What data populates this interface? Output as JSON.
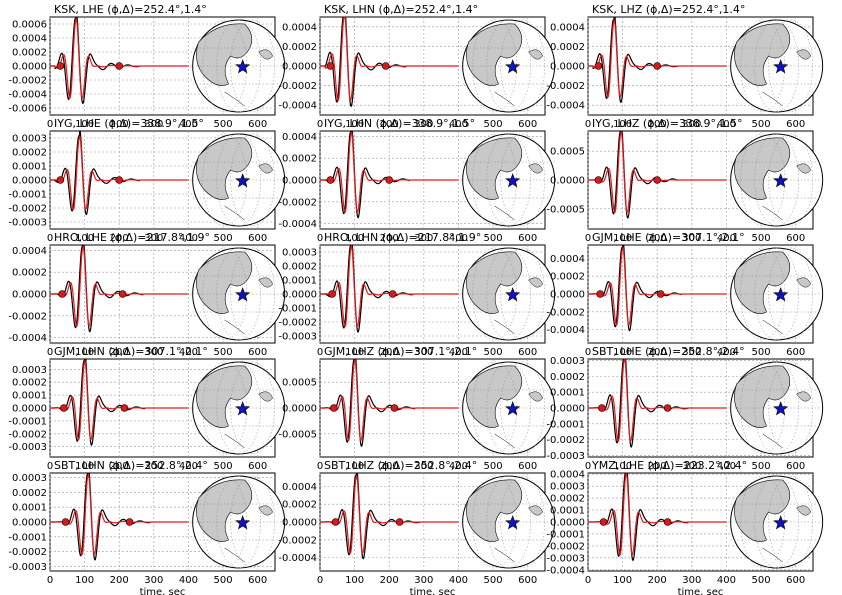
{
  "figure": {
    "x_ticks": [
      0,
      100,
      200,
      300,
      400,
      500,
      600
    ],
    "xlim": [
      0,
      650
    ],
    "xlabel": "time, sec",
    "colors": {
      "data": "#000000",
      "synthetic": "#e41a1c",
      "marker": "#d7191c",
      "land": "#c8c8c8",
      "star": "#1010c8"
    }
  },
  "chart_data": [
    {
      "type": "line",
      "title": "KSK, LHE",
      "phi": "252.4",
      "delta": "1.4",
      "ylim": [
        -0.0007,
        0.0007
      ],
      "y_ticks": [
        "0.0006",
        "0.0004",
        "0.0002",
        "0.0000",
        "-0.0002",
        "-0.0004",
        "-0.0006"
      ],
      "y_tick_values": [
        0.0006,
        0.0004,
        0.0002,
        0,
        -0.0002,
        -0.0004,
        -0.0006
      ],
      "peak_time": 75,
      "amp": 0.00065,
      "markers": [
        30,
        200
      ],
      "xlabel": ""
    },
    {
      "type": "line",
      "title": "KSK, LHN",
      "phi": "252.4",
      "delta": "1.4",
      "ylim": [
        -0.0005,
        0.0005
      ],
      "y_ticks": [
        "0.0004",
        "0.0002",
        "0.0000",
        "-0.0002",
        "-0.0004"
      ],
      "y_tick_values": [
        0.0004,
        0.0002,
        0,
        -0.0002,
        -0.0004
      ],
      "peak_time": 70,
      "amp": 0.0005,
      "markers": [
        30,
        190
      ],
      "xlabel": ""
    },
    {
      "type": "line",
      "title": "KSK, LHZ",
      "phi": "252.4",
      "delta": "1.4",
      "ylim": [
        -0.0005,
        0.0005
      ],
      "y_ticks": [
        "0.0004",
        "0.0002",
        "0.0000",
        "-0.0002",
        "-0.0004"
      ],
      "y_tick_values": [
        0.0004,
        0.0002,
        0,
        -0.0002,
        -0.0004
      ],
      "peak_time": 75,
      "amp": 0.00045,
      "markers": [
        30,
        200
      ],
      "xlabel": ""
    },
    {
      "type": "line",
      "title": "IYG, LHE",
      "phi": "338.9",
      "delta": "1.5",
      "ylim": [
        -0.00035,
        0.00035
      ],
      "y_ticks": [
        "0.0003",
        "0.0002",
        "0.0001",
        "0.0000",
        "-0.0001",
        "-0.0002",
        "-0.0003"
      ],
      "y_tick_values": [
        0.0003,
        0.0002,
        0.0001,
        0,
        -0.0001,
        -0.0002,
        -0.0003
      ],
      "peak_time": 85,
      "amp": 0.0003,
      "markers": [
        30,
        200
      ],
      "xlabel": ""
    },
    {
      "type": "line",
      "title": "IYG, LHN",
      "phi": "338.9",
      "delta": "1.5",
      "ylim": [
        -0.00045,
        0.00045
      ],
      "y_ticks": [
        "0.0004",
        "0.0002",
        "0.0000",
        "-0.0002",
        "-0.0004"
      ],
      "y_tick_values": [
        0.0004,
        0.0002,
        0,
        -0.0002,
        -0.0004
      ],
      "peak_time": 90,
      "amp": 0.00042,
      "markers": [
        30,
        200
      ],
      "xlabel": ""
    },
    {
      "type": "line",
      "title": "IYG, LHZ",
      "phi": "338.9",
      "delta": "1.5",
      "ylim": [
        -0.00085,
        0.00085
      ],
      "y_ticks": [
        "0.0005",
        "0.0000",
        "-0.0005"
      ],
      "y_tick_values": [
        0.0005,
        0,
        -0.0005
      ],
      "peak_time": 95,
      "amp": 0.0008,
      "markers": [
        30,
        200
      ],
      "xlabel": ""
    },
    {
      "type": "line",
      "title": "HRO, LHE",
      "phi": "217.8",
      "delta": "1.9",
      "ylim": [
        -0.00045,
        0.00045
      ],
      "y_ticks": [
        "0.0004",
        "0.0002",
        "0.0000",
        "-0.0002",
        "-0.0004"
      ],
      "y_tick_values": [
        0.0004,
        0.0002,
        0,
        -0.0002,
        -0.0004
      ],
      "peak_time": 95,
      "amp": 0.00042,
      "markers": [
        35,
        210
      ],
      "xlabel": ""
    },
    {
      "type": "line",
      "title": "HRO, LHN",
      "phi": "217.8",
      "delta": "1.9",
      "ylim": [
        -0.00035,
        0.00035
      ],
      "y_ticks": [
        "0.0003",
        "0.0002",
        "0.0001",
        "0.0000",
        "-0.0001",
        "-0.0002",
        "-0.0003"
      ],
      "y_tick_values": [
        0.0003,
        0.0002,
        0.0001,
        0,
        -0.0001,
        -0.0002,
        -0.0003
      ],
      "peak_time": 90,
      "amp": 0.00033,
      "markers": [
        35,
        210
      ],
      "xlabel": ""
    },
    {
      "type": "line",
      "title": "GJM, LHE",
      "phi": "307.1",
      "delta": "2.1",
      "ylim": [
        -0.00055,
        0.00055
      ],
      "y_ticks": [
        "0.0004",
        "0.0002",
        "0.0000",
        "-0.0002",
        "-0.0004"
      ],
      "y_tick_values": [
        0.0004,
        0.0002,
        0,
        -0.0002,
        -0.0004
      ],
      "peak_time": 100,
      "amp": 0.0005,
      "markers": [
        35,
        210
      ],
      "xlabel": ""
    },
    {
      "type": "line",
      "title": "GJM, LHN",
      "phi": "307.1",
      "delta": "2.1",
      "ylim": [
        -0.00038,
        0.00038
      ],
      "y_ticks": [
        "0.0003",
        "0.0002",
        "0.0001",
        "0.0000",
        "-0.0001",
        "-0.0002",
        "-0.0003"
      ],
      "y_tick_values": [
        0.0003,
        0.0002,
        0.0001,
        0,
        -0.0001,
        -0.0002,
        -0.0003
      ],
      "peak_time": 100,
      "amp": 0.00035,
      "markers": [
        40,
        215
      ],
      "xlabel": ""
    },
    {
      "type": "line",
      "title": "GJM, LHZ",
      "phi": "307.1",
      "delta": "2.1",
      "ylim": [
        -0.00095,
        0.00095
      ],
      "y_ticks": [
        "0.0005",
        "0.0000",
        "-0.0005"
      ],
      "y_tick_values": [
        0.0005,
        0,
        -0.0005
      ],
      "peak_time": 100,
      "amp": 0.0009,
      "markers": [
        40,
        215
      ],
      "xlabel": ""
    },
    {
      "type": "line",
      "title": "SBT, LHE",
      "phi": "252.8",
      "delta": "2.4",
      "ylim": [
        -0.00031,
        0.00031
      ],
      "y_ticks": [
        "0.0003",
        "0.0002",
        "0.0001",
        "0.0000",
        "-0.0001",
        "-0.0002",
        "-0.0003"
      ],
      "y_tick_values": [
        0.0003,
        0.0002,
        0.0001,
        0,
        -0.0001,
        -0.0002,
        -0.0003
      ],
      "peak_time": 105,
      "amp": 0.0003,
      "markers": [
        40,
        230
      ],
      "xlabel": ""
    },
    {
      "type": "line",
      "title": "SBT, LHN",
      "phi": "252.8",
      "delta": "2.4",
      "ylim": [
        -0.00033,
        0.00033
      ],
      "y_ticks": [
        "0.0003",
        "0.0002",
        "0.0001",
        "0.0000",
        "-0.0001",
        "-0.0002",
        "-0.0003"
      ],
      "y_tick_values": [
        0.0003,
        0.0002,
        0.0001,
        0,
        -0.0001,
        -0.0002,
        -0.0003
      ],
      "peak_time": 110,
      "amp": 0.00031,
      "markers": [
        45,
        230
      ],
      "xlabel": "time, sec"
    },
    {
      "type": "line",
      "title": "SBT, LHZ",
      "phi": "252.8",
      "delta": "2.4",
      "ylim": [
        -0.00055,
        0.00055
      ],
      "y_ticks": [
        "0.0004",
        "0.0002",
        "0.0000",
        "-0.0002",
        "-0.0004"
      ],
      "y_tick_values": [
        0.0004,
        0.0002,
        0,
        -0.0002,
        -0.0004
      ],
      "peak_time": 105,
      "amp": 0.0005,
      "markers": [
        45,
        230
      ],
      "xlabel": "time, sec"
    },
    {
      "type": "line",
      "title": "YMZ, LHE",
      "phi": "223.2",
      "delta": "2.4",
      "ylim": [
        -0.00041,
        0.00041
      ],
      "y_ticks": [
        "0.0004",
        "0.0003",
        "0.0002",
        "0.0001",
        "0.0000",
        "-0.0001",
        "-0.0002",
        "-0.0003",
        "-0.0004"
      ],
      "y_tick_values": [
        0.0004,
        0.0003,
        0.0002,
        0.0001,
        0,
        -0.0001,
        -0.0002,
        -0.0003,
        -0.0004
      ],
      "peak_time": 110,
      "amp": 0.00039,
      "markers": [
        45,
        230
      ],
      "xlabel": "time, sec"
    }
  ]
}
